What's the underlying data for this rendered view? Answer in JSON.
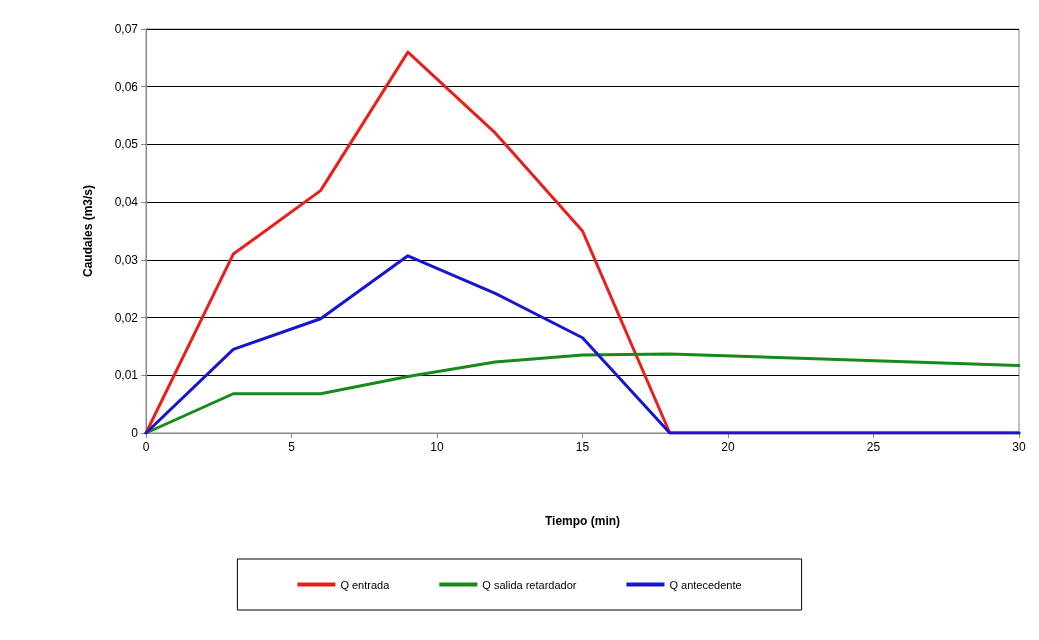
{
  "chart_data": {
    "type": "line",
    "xlabel": "Tiempo (min)",
    "ylabel": "Caudales (m3/s)",
    "xlim": [
      0,
      30
    ],
    "xticks": [
      0,
      5,
      10,
      15,
      20,
      25,
      30
    ],
    "ylim": [
      0,
      0.07
    ],
    "yticks": [
      0,
      {
        "value": 0.01,
        "label": "0,01"
      },
      {
        "value": 0.02,
        "label": "0,02"
      },
      {
        "value": 0.03,
        "label": "0,03"
      },
      {
        "value": 0.04,
        "label": "0,04"
      },
      {
        "value": 0.05,
        "label": "0,05"
      },
      {
        "value": 0.06,
        "label": "0,06"
      },
      {
        "value": 0.07,
        "label": "0,07"
      }
    ],
    "grid": "y",
    "legend": "bottom",
    "marker": "none",
    "line_style": "solid",
    "series": [
      {
        "name": "Q entrada",
        "color": "#e8201c",
        "x": [
          0,
          3,
          6,
          9,
          12,
          15,
          18,
          30
        ],
        "values": [
          0,
          0.031,
          0.042,
          0.066,
          0.052,
          0.035,
          0,
          0
        ]
      },
      {
        "name": "Q salida retardador",
        "color": "#178a1b",
        "x": [
          0,
          3,
          6,
          9,
          12,
          15,
          18,
          30
        ],
        "values": [
          0,
          0.0068,
          0.0068,
          0.0098,
          0.0123,
          0.0135,
          0.0137,
          0.0117
        ]
      },
      {
        "name": "Q antecedente",
        "color": "#1616d0",
        "x": [
          0,
          3,
          6,
          9,
          12,
          15,
          18,
          30
        ],
        "values": [
          0,
          0.0145,
          0.0198,
          0.0307,
          0.0242,
          0.0165,
          0,
          0
        ]
      }
    ]
  }
}
